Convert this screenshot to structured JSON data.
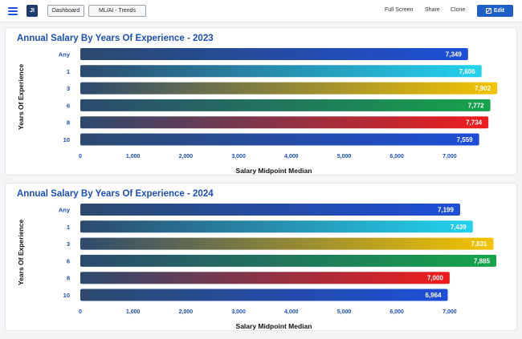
{
  "topbar": {
    "logo_text": "JI",
    "breadcrumbs": [
      "Dashboard",
      "ML/AI - Trends"
    ],
    "links": [
      "Full Screen",
      "Share",
      "Clone"
    ],
    "edit_label": "Edit"
  },
  "colors": {
    "accent": "#1e5fc8",
    "title": "#1a4fb8",
    "bar_start": "#2c4a6e",
    "series_colors": [
      "#1d4ed8",
      "#22d3ee",
      "#f5c400",
      "#16a34a",
      "#ef1c1c",
      "#1d4ed8"
    ]
  },
  "chart_data": [
    {
      "type": "bar",
      "orientation": "horizontal",
      "title": "Annual Salary By Years Of Experience - 2023",
      "xlabel": "Salary Midpoint Median",
      "ylabel": "Years Of Experience",
      "categories": [
        "Any",
        "1",
        "3",
        "6",
        "8",
        "10"
      ],
      "values": [
        7349,
        7606,
        7902,
        7772,
        7734,
        7559
      ],
      "value_labels": [
        "7,349",
        "7,606",
        "7,902",
        "7,772",
        "7,734",
        "7,559"
      ],
      "xlim": [
        0,
        7800
      ],
      "xticks": [
        0,
        1000,
        2000,
        3000,
        4000,
        5000,
        6000,
        7000
      ],
      "xtick_labels": [
        "0",
        "1,000",
        "2,000",
        "3,000",
        "4,000",
        "5,000",
        "6,000",
        "7,000"
      ],
      "grid": false,
      "legend": "none"
    },
    {
      "type": "bar",
      "orientation": "horizontal",
      "title": "Annual Salary By Years Of Experience - 2024",
      "xlabel": "Salary Midpoint Median",
      "ylabel": "Years Of Experience",
      "categories": [
        "Any",
        "1",
        "3",
        "6",
        "8",
        "10"
      ],
      "values": [
        7199,
        7439,
        7831,
        7885,
        7000,
        6964
      ],
      "value_labels": [
        "7,199",
        "7,439",
        "7,831",
        "7,885",
        "7,000",
        "6,964"
      ],
      "xlim": [
        0,
        7800
      ],
      "xticks": [
        0,
        1000,
        2000,
        3000,
        4000,
        5000,
        6000,
        7000
      ],
      "xtick_labels": [
        "0",
        "1,000",
        "2,000",
        "3,000",
        "4,000",
        "5,000",
        "6,000",
        "7,000"
      ],
      "grid": false,
      "legend": "none"
    }
  ]
}
